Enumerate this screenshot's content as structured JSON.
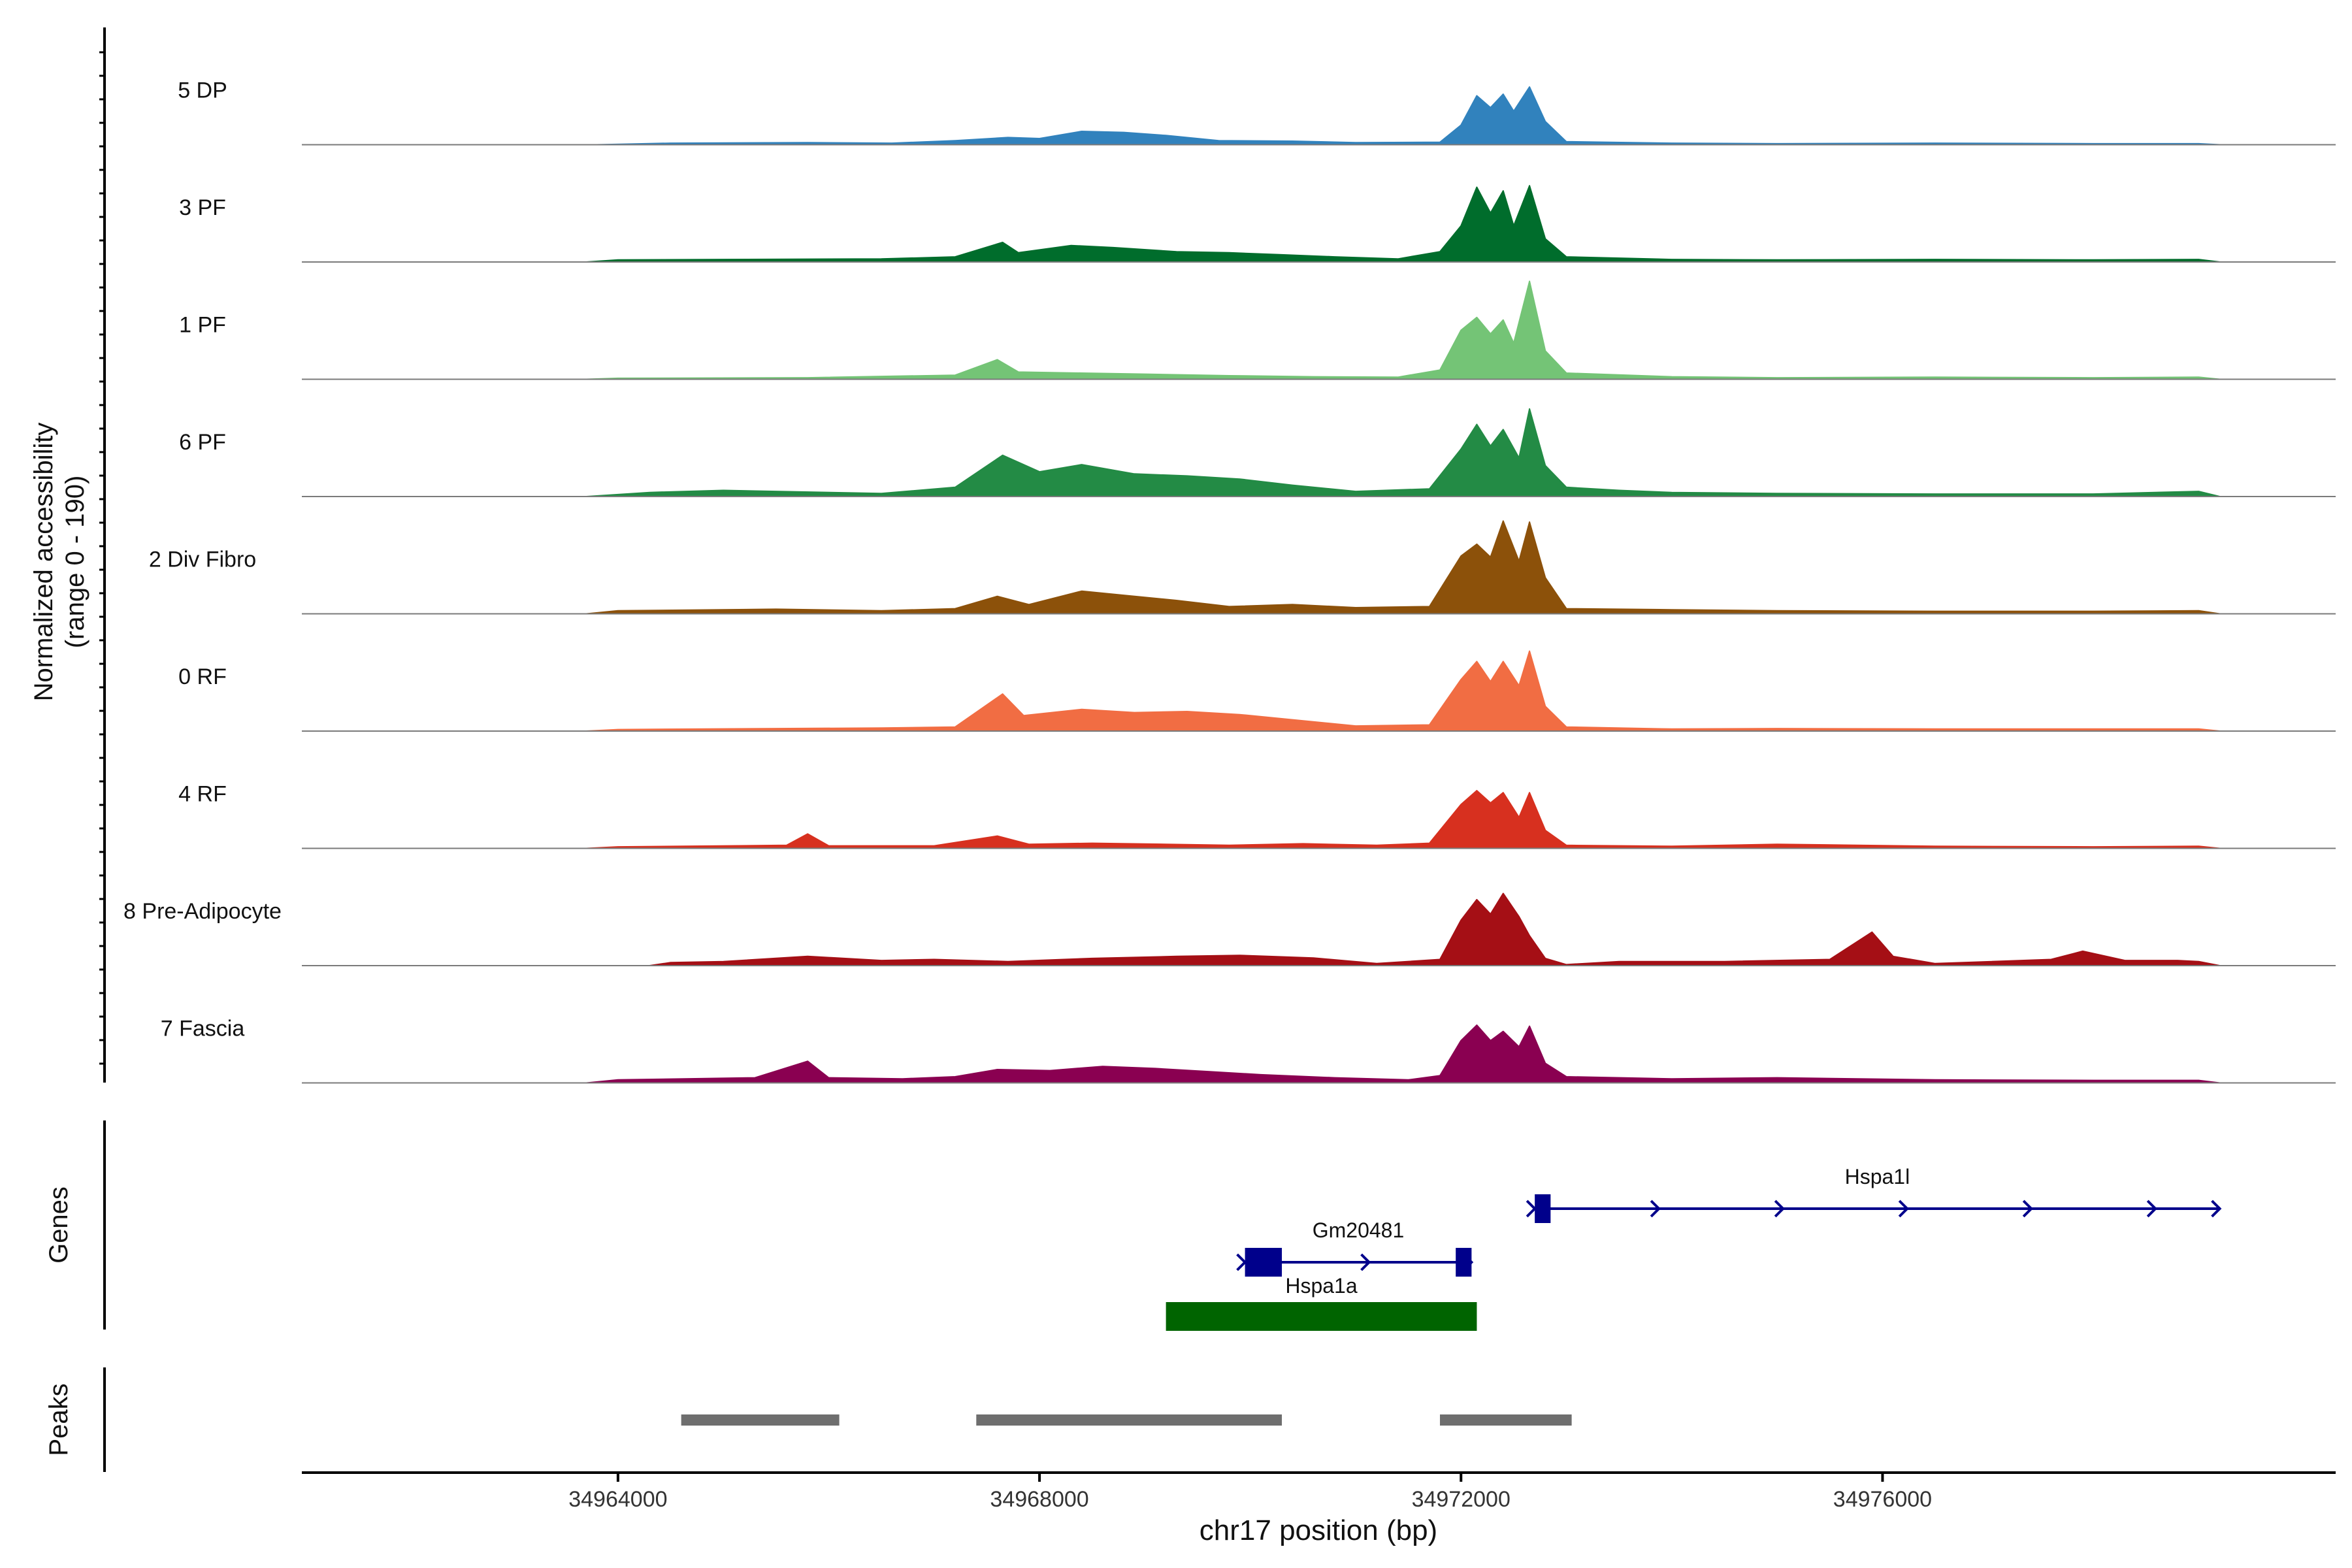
{
  "chart_data": {
    "type": "area",
    "title": "",
    "chromosome": "chr17",
    "xlabel": "chr17 position (bp)",
    "ylabel_line1": "Normalized accessibility",
    "ylabel_line2": "(range 0 - 190)",
    "xlim": [
      34961000,
      34980300
    ],
    "ylim": [
      0,
      190
    ],
    "x_ticks": [
      34964000,
      34968000,
      34972000,
      34976000
    ],
    "x_tick_labels": [
      "34964000",
      "34968000",
      "34972000",
      "34976000"
    ],
    "tracks": [
      {
        "name": "5 DP",
        "color": "#3182bd",
        "points": [
          [
            34963800,
            0
          ],
          [
            34964500,
            3
          ],
          [
            34965800,
            4
          ],
          [
            34966600,
            3
          ],
          [
            34967200,
            8
          ],
          [
            34967700,
            14
          ],
          [
            34968000,
            12
          ],
          [
            34968400,
            26
          ],
          [
            34968800,
            24
          ],
          [
            34969200,
            18
          ],
          [
            34969700,
            8
          ],
          [
            34970400,
            7
          ],
          [
            34971000,
            4
          ],
          [
            34971800,
            5
          ],
          [
            34972000,
            38
          ],
          [
            34972150,
            95
          ],
          [
            34972280,
            72
          ],
          [
            34972400,
            98
          ],
          [
            34972500,
            65
          ],
          [
            34972650,
            112
          ],
          [
            34972800,
            45
          ],
          [
            34973000,
            6
          ],
          [
            34974000,
            3
          ],
          [
            34975000,
            2
          ],
          [
            34976500,
            3
          ],
          [
            34978000,
            2
          ],
          [
            34979000,
            2
          ],
          [
            34979200,
            0
          ]
        ]
      },
      {
        "name": "3 PF",
        "color": "#006d2c",
        "points": [
          [
            34963700,
            0
          ],
          [
            34964000,
            4
          ],
          [
            34965000,
            5
          ],
          [
            34966500,
            6
          ],
          [
            34967200,
            10
          ],
          [
            34967650,
            38
          ],
          [
            34967800,
            18
          ],
          [
            34968300,
            32
          ],
          [
            34968700,
            28
          ],
          [
            34969300,
            20
          ],
          [
            34969800,
            18
          ],
          [
            34970300,
            14
          ],
          [
            34970800,
            10
          ],
          [
            34971400,
            6
          ],
          [
            34971800,
            20
          ],
          [
            34972000,
            70
          ],
          [
            34972150,
            145
          ],
          [
            34972280,
            95
          ],
          [
            34972400,
            138
          ],
          [
            34972500,
            70
          ],
          [
            34972650,
            148
          ],
          [
            34972800,
            45
          ],
          [
            34973000,
            10
          ],
          [
            34974000,
            5
          ],
          [
            34975000,
            4
          ],
          [
            34976500,
            5
          ],
          [
            34978000,
            4
          ],
          [
            34979000,
            5
          ],
          [
            34979200,
            0
          ]
        ]
      },
      {
        "name": "1 PF",
        "color": "#74c476",
        "points": [
          [
            34963700,
            0
          ],
          [
            34964000,
            2
          ],
          [
            34965800,
            3
          ],
          [
            34967200,
            8
          ],
          [
            34967600,
            38
          ],
          [
            34967800,
            14
          ],
          [
            34968400,
            12
          ],
          [
            34969000,
            10
          ],
          [
            34969800,
            7
          ],
          [
            34970600,
            5
          ],
          [
            34971400,
            4
          ],
          [
            34971800,
            18
          ],
          [
            34972000,
            95
          ],
          [
            34972150,
            120
          ],
          [
            34972280,
            88
          ],
          [
            34972400,
            115
          ],
          [
            34972500,
            70
          ],
          [
            34972650,
            190
          ],
          [
            34972800,
            55
          ],
          [
            34973000,
            12
          ],
          [
            34974000,
            5
          ],
          [
            34975000,
            3
          ],
          [
            34976500,
            4
          ],
          [
            34978000,
            3
          ],
          [
            34979000,
            4
          ],
          [
            34979200,
            0
          ]
        ]
      },
      {
        "name": "6 PF",
        "color": "#238b45",
        "points": [
          [
            34963700,
            0
          ],
          [
            34964300,
            8
          ],
          [
            34965000,
            12
          ],
          [
            34966500,
            6
          ],
          [
            34967200,
            18
          ],
          [
            34967650,
            80
          ],
          [
            34968000,
            48
          ],
          [
            34968400,
            62
          ],
          [
            34968900,
            44
          ],
          [
            34969400,
            40
          ],
          [
            34969900,
            34
          ],
          [
            34970400,
            22
          ],
          [
            34971000,
            10
          ],
          [
            34971700,
            15
          ],
          [
            34972000,
            92
          ],
          [
            34972150,
            140
          ],
          [
            34972280,
            98
          ],
          [
            34972400,
            130
          ],
          [
            34972550,
            75
          ],
          [
            34972650,
            170
          ],
          [
            34972800,
            60
          ],
          [
            34973000,
            18
          ],
          [
            34973500,
            12
          ],
          [
            34974000,
            8
          ],
          [
            34975000,
            6
          ],
          [
            34976500,
            5
          ],
          [
            34978000,
            5
          ],
          [
            34979000,
            10
          ],
          [
            34979200,
            0
          ]
        ]
      },
      {
        "name": "2 Div Fibro",
        "color": "#8c510a",
        "points": [
          [
            34963700,
            0
          ],
          [
            34964000,
            6
          ],
          [
            34965500,
            9
          ],
          [
            34966500,
            6
          ],
          [
            34967200,
            10
          ],
          [
            34967600,
            34
          ],
          [
            34967900,
            18
          ],
          [
            34968400,
            44
          ],
          [
            34968800,
            36
          ],
          [
            34969300,
            26
          ],
          [
            34969800,
            14
          ],
          [
            34970400,
            18
          ],
          [
            34971000,
            12
          ],
          [
            34971700,
            14
          ],
          [
            34972000,
            112
          ],
          [
            34972150,
            135
          ],
          [
            34972280,
            110
          ],
          [
            34972400,
            180
          ],
          [
            34972550,
            102
          ],
          [
            34972650,
            178
          ],
          [
            34972800,
            70
          ],
          [
            34973000,
            10
          ],
          [
            34974000,
            8
          ],
          [
            34975000,
            6
          ],
          [
            34976500,
            5
          ],
          [
            34978000,
            5
          ],
          [
            34979000,
            6
          ],
          [
            34979200,
            0
          ]
        ]
      },
      {
        "name": "0 RF",
        "color": "#f16d43",
        "points": [
          [
            34963700,
            0
          ],
          [
            34964000,
            3
          ],
          [
            34965500,
            5
          ],
          [
            34966500,
            6
          ],
          [
            34967200,
            8
          ],
          [
            34967650,
            72
          ],
          [
            34967850,
            30
          ],
          [
            34968400,
            42
          ],
          [
            34968900,
            36
          ],
          [
            34969400,
            38
          ],
          [
            34969900,
            32
          ],
          [
            34970400,
            22
          ],
          [
            34971000,
            10
          ],
          [
            34971700,
            12
          ],
          [
            34972000,
            100
          ],
          [
            34972150,
            135
          ],
          [
            34972280,
            96
          ],
          [
            34972400,
            135
          ],
          [
            34972550,
            88
          ],
          [
            34972650,
            155
          ],
          [
            34972800,
            48
          ],
          [
            34973000,
            8
          ],
          [
            34974000,
            4
          ],
          [
            34975000,
            5
          ],
          [
            34976500,
            4
          ],
          [
            34978000,
            4
          ],
          [
            34979000,
            4
          ],
          [
            34979200,
            0
          ]
        ]
      },
      {
        "name": "4 RF",
        "color": "#d7301f",
        "points": [
          [
            34963700,
            0
          ],
          [
            34964000,
            3
          ],
          [
            34965600,
            6
          ],
          [
            34965800,
            28
          ],
          [
            34966000,
            5
          ],
          [
            34967000,
            5
          ],
          [
            34967600,
            24
          ],
          [
            34967900,
            8
          ],
          [
            34968500,
            10
          ],
          [
            34969200,
            8
          ],
          [
            34969800,
            6
          ],
          [
            34970500,
            9
          ],
          [
            34971200,
            6
          ],
          [
            34971700,
            10
          ],
          [
            34972000,
            85
          ],
          [
            34972150,
            112
          ],
          [
            34972280,
            88
          ],
          [
            34972400,
            108
          ],
          [
            34972550,
            60
          ],
          [
            34972650,
            108
          ],
          [
            34972800,
            35
          ],
          [
            34973000,
            6
          ],
          [
            34974000,
            4
          ],
          [
            34975000,
            8
          ],
          [
            34976500,
            4
          ],
          [
            34978000,
            3
          ],
          [
            34979000,
            4
          ],
          [
            34979200,
            0
          ]
        ]
      },
      {
        "name": "8 Pre-Adipocyte",
        "color": "#a50f15",
        "points": [
          [
            34964300,
            0
          ],
          [
            34964500,
            6
          ],
          [
            34965000,
            8
          ],
          [
            34965800,
            18
          ],
          [
            34966500,
            10
          ],
          [
            34967000,
            12
          ],
          [
            34967700,
            8
          ],
          [
            34968500,
            14
          ],
          [
            34969300,
            18
          ],
          [
            34969900,
            20
          ],
          [
            34970600,
            15
          ],
          [
            34971200,
            4
          ],
          [
            34971800,
            12
          ],
          [
            34972000,
            88
          ],
          [
            34972150,
            128
          ],
          [
            34972280,
            100
          ],
          [
            34972400,
            140
          ],
          [
            34972550,
            95
          ],
          [
            34972650,
            58
          ],
          [
            34972800,
            14
          ],
          [
            34973000,
            2
          ],
          [
            34973500,
            8
          ],
          [
            34974500,
            8
          ],
          [
            34975500,
            12
          ],
          [
            34975900,
            65
          ],
          [
            34976100,
            18
          ],
          [
            34976500,
            4
          ],
          [
            34977600,
            12
          ],
          [
            34977900,
            28
          ],
          [
            34978300,
            10
          ],
          [
            34978800,
            10
          ],
          [
            34979000,
            8
          ],
          [
            34979200,
            0
          ]
        ]
      },
      {
        "name": "7 Fascia",
        "color": "#8a0051",
        "points": [
          [
            34963700,
            0
          ],
          [
            34964000,
            6
          ],
          [
            34965300,
            10
          ],
          [
            34965800,
            42
          ],
          [
            34966000,
            10
          ],
          [
            34966700,
            8
          ],
          [
            34967200,
            12
          ],
          [
            34967600,
            26
          ],
          [
            34968100,
            24
          ],
          [
            34968600,
            32
          ],
          [
            34969100,
            28
          ],
          [
            34969600,
            22
          ],
          [
            34970100,
            16
          ],
          [
            34970800,
            10
          ],
          [
            34971500,
            6
          ],
          [
            34971800,
            14
          ],
          [
            34972000,
            82
          ],
          [
            34972150,
            112
          ],
          [
            34972280,
            82
          ],
          [
            34972400,
            100
          ],
          [
            34972550,
            70
          ],
          [
            34972650,
            110
          ],
          [
            34972800,
            38
          ],
          [
            34973000,
            12
          ],
          [
            34974000,
            8
          ],
          [
            34975000,
            10
          ],
          [
            34976500,
            6
          ],
          [
            34978000,
            5
          ],
          [
            34979000,
            5
          ],
          [
            34979200,
            0
          ]
        ]
      }
    ],
    "genes_panel_label": "Genes",
    "genes": [
      {
        "name": "Hspa1l",
        "strand": "+",
        "color": "#00008b",
        "row": 0,
        "start": 34972700,
        "end": 34979200,
        "exons": [
          [
            34972700,
            34972850
          ]
        ]
      },
      {
        "name": "Gm20481",
        "strand": "+",
        "color": "#00008b",
        "row": 1,
        "start": 34969950,
        "end": 34972100,
        "exons": [
          [
            34969950,
            34970300
          ],
          [
            34971950,
            34972100
          ]
        ]
      },
      {
        "name": "Hspa1a",
        "strand": "",
        "color": "#006400",
        "row": 2,
        "start": 34969200,
        "end": 34972150,
        "exons": [
          [
            34969200,
            34972150
          ]
        ]
      }
    ],
    "peaks_panel_label": "Peaks",
    "peaks_color": "#6e6e6e",
    "peaks": [
      [
        34964600,
        34966100
      ],
      [
        34967400,
        34970300
      ],
      [
        34971800,
        34973050
      ]
    ]
  }
}
